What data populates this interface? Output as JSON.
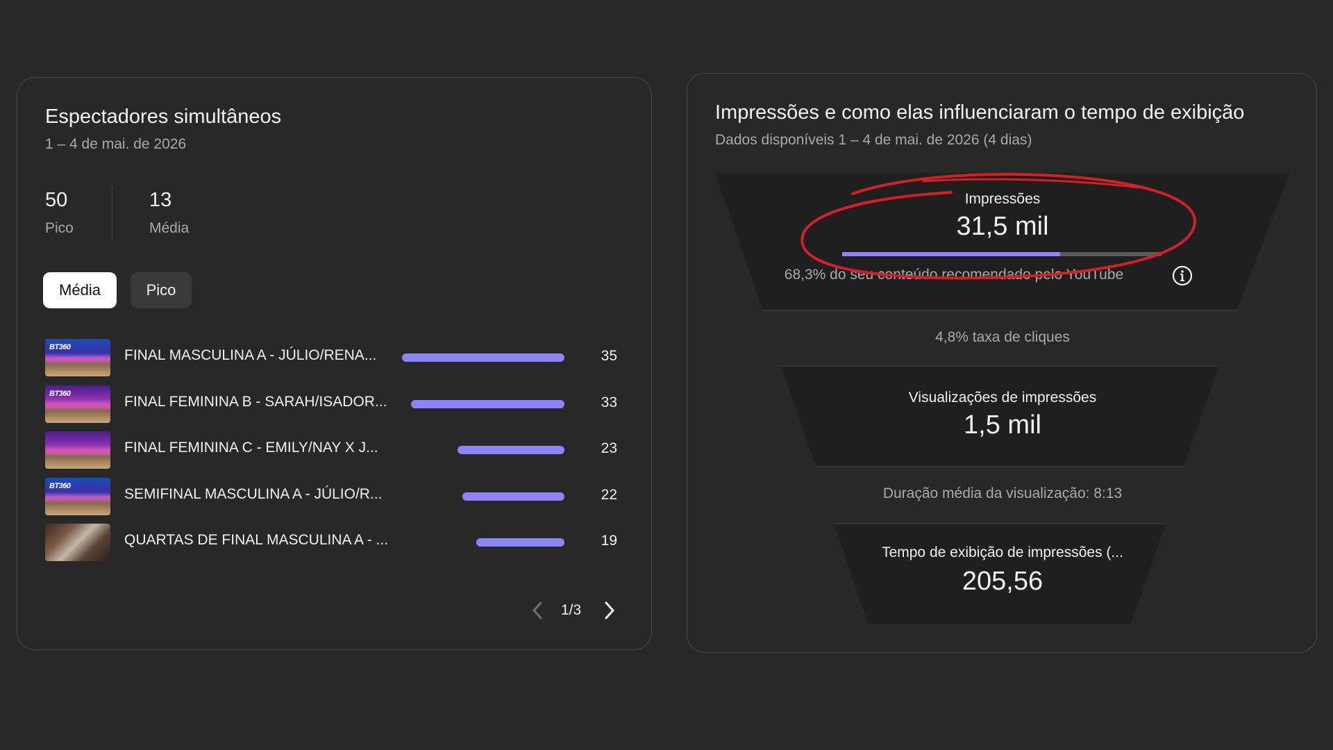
{
  "concurrent_viewers": {
    "title": "Espectadores simultâneos",
    "date_range": "1 – 4 de mai. de 2026",
    "stats": [
      {
        "value": "50",
        "label": "Pico"
      },
      {
        "value": "13",
        "label": "Média"
      }
    ],
    "chips": [
      {
        "label": "Média",
        "selected": true
      },
      {
        "label": "Pico",
        "selected": false
      }
    ],
    "rows": [
      {
        "title": "FINAL MASCULINA A - JÚLIO/RENA...",
        "value": 35,
        "thumb": "blue"
      },
      {
        "title": "FINAL FEMININA B - SARAH/ISADOR...",
        "value": 33,
        "thumb": "pink"
      },
      {
        "title": "FINAL FEMININA C - EMILY/NAY X J...",
        "value": 23,
        "thumb": "pink"
      },
      {
        "title": "SEMIFINAL MASCULINA A - JÚLIO/R...",
        "value": 22,
        "thumb": "blue"
      },
      {
        "title": "QUARTAS DE FINAL MASCULINA A - ...",
        "value": 19,
        "thumb": "photo"
      }
    ],
    "bar_color": "#8e84f7",
    "pager": "1/3"
  },
  "impressions": {
    "title": "Impressões e como elas influenciaram o tempo de exibição",
    "subtitle": "Dados disponíveis 1 – 4 de mai. de 2026 (4 dias)",
    "impressions_label": "Impressões",
    "impressions_value": "31,5 mil",
    "recommended_fraction": 0.683,
    "recommended_text": "68,3% do seu conteúdo recomendado pelo YouTube",
    "ctr_text": "4,8% taxa de cliques",
    "views_label": "Visualizações de impressões",
    "views_value": "1,5 mil",
    "avg_duration_text": "Duração média da visualização: 8:13",
    "watch_time_label": "Tempo de exibição de impressões (...",
    "watch_time_value": "205,56",
    "highlight_color": "#d32027"
  }
}
